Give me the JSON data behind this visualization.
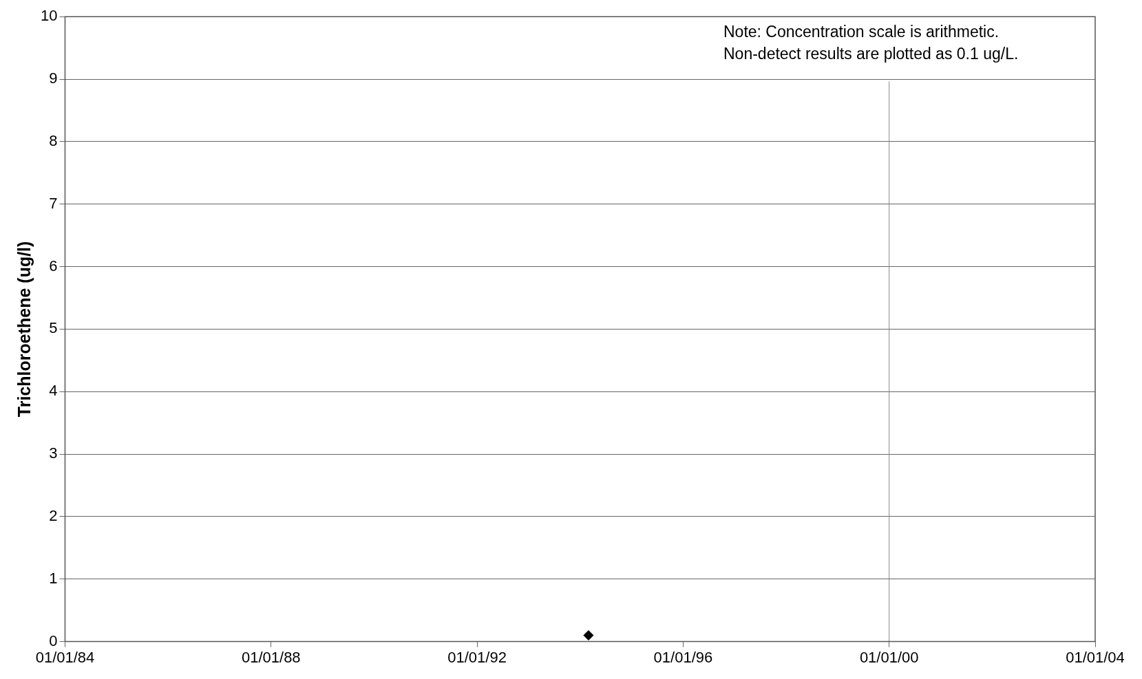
{
  "chart_data": {
    "type": "scatter",
    "ylabel": "Trichloroethene (ug/l)",
    "annotations": [
      "Note: Concentration scale is arithmetic.",
      "Non-detect results are plotted as 0.1 ug/L."
    ],
    "x": [
      "1994-03-01"
    ],
    "series": [
      {
        "color": "#000000",
        "values": [
          0.1
        ]
      }
    ],
    "marker": "diamond",
    "grid": "y",
    "xlim": [
      "1984-01-01",
      "2004-01-01"
    ],
    "xticks": [
      {
        "value": "1984-01-01",
        "label": "01/01/84"
      },
      {
        "value": "1988-01-01",
        "label": "01/01/88"
      },
      {
        "value": "1992-01-01",
        "label": "01/01/92"
      },
      {
        "value": "1996-01-01",
        "label": "01/01/96"
      },
      {
        "value": "2000-01-01",
        "label": "01/01/00"
      },
      {
        "value": "2004-01-01",
        "label": "01/01/04"
      }
    ],
    "ylim": [
      0,
      10
    ],
    "yticks": [
      0,
      1,
      2,
      3,
      4,
      5,
      6,
      7,
      8,
      9,
      10
    ],
    "ref_lines": [
      {
        "axis": "x",
        "value": "2000-01-01",
        "color": "#888888"
      }
    ],
    "legend": false
  }
}
